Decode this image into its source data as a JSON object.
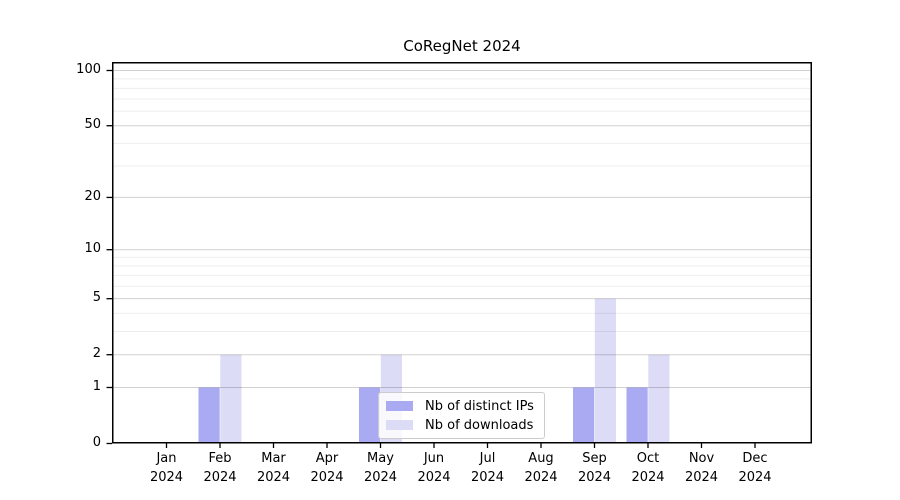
{
  "chart_data": {
    "type": "bar",
    "title": "CoRegNet 2024",
    "categories": [
      "Jan",
      "Feb",
      "Mar",
      "Apr",
      "May",
      "Jun",
      "Jul",
      "Aug",
      "Sep",
      "Oct",
      "Nov",
      "Dec"
    ],
    "category_year": "2024",
    "series": [
      {
        "name": "Nb of distinct IPs",
        "color": "#aaaaf2",
        "values": [
          0,
          1,
          0,
          0,
          1,
          0,
          0,
          0,
          1,
          1,
          0,
          0
        ]
      },
      {
        "name": "Nb of downloads",
        "color": "#dcdcf6",
        "values": [
          0,
          2,
          0,
          0,
          2,
          0,
          0,
          0,
          5,
          2,
          0,
          0
        ]
      }
    ],
    "yscale": "log1p",
    "ylim": [
      0,
      112
    ],
    "yticks": [
      0,
      1,
      2,
      5,
      10,
      20,
      50,
      100
    ],
    "yticks_minor": [
      3,
      4,
      6,
      7,
      8,
      9,
      30,
      40,
      60,
      70,
      80,
      90
    ],
    "grid": "horizontal",
    "legend_position": "lower center",
    "xlabel": "",
    "ylabel": ""
  },
  "colors": {
    "spine": "#000000",
    "grid_major": "rgba(0,0,0,0.18)",
    "grid_minor": "rgba(0,0,0,0.07)",
    "text": "#000000"
  }
}
